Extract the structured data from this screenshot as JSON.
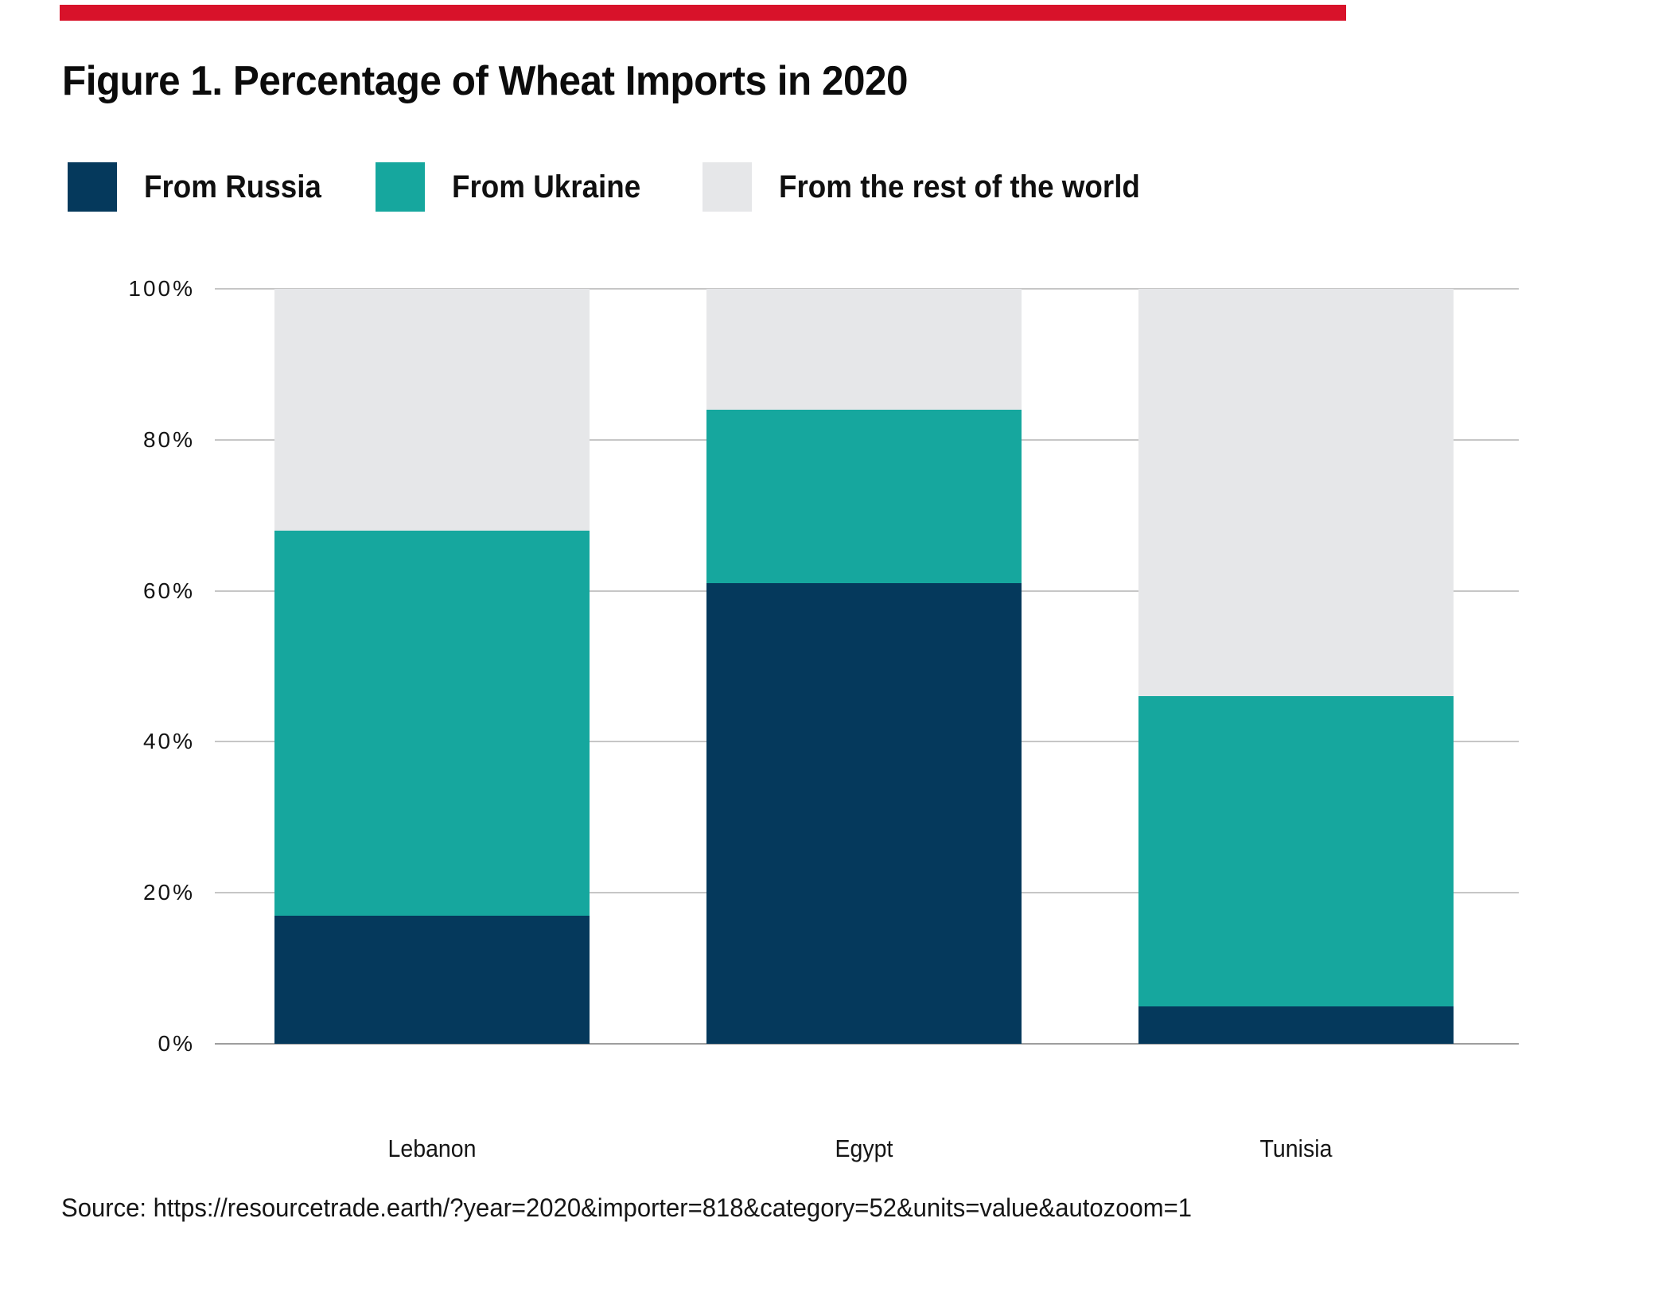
{
  "accent_bar": {
    "color": "#d8122a"
  },
  "title": "Figure 1. Percentage of Wheat Imports in 2020",
  "source": "Source: https://resourcetrade.earth/?year=2020&importer=818&category=52&units=value&autozoom=1",
  "chart_data": {
    "type": "bar",
    "stacked": true,
    "title": "Figure 1. Percentage of Wheat Imports in 2020",
    "categories": [
      "Lebanon",
      "Egypt",
      "Tunisia"
    ],
    "series": [
      {
        "name": "From Russia",
        "color": "#05395c",
        "values": [
          17,
          61,
          5
        ]
      },
      {
        "name": "From Ukraine",
        "color": "#16a79e",
        "values": [
          51,
          23,
          41
        ]
      },
      {
        "name": "From the rest of the world",
        "color": "#e6e7e9",
        "values": [
          32,
          16,
          54
        ]
      }
    ],
    "xlabel": "",
    "ylabel": "",
    "ylim": [
      0,
      100
    ],
    "y_ticks": [
      "100%",
      "80%",
      "60%",
      "40%",
      "20%",
      "0%"
    ],
    "grid": true,
    "legend_position": "top"
  }
}
